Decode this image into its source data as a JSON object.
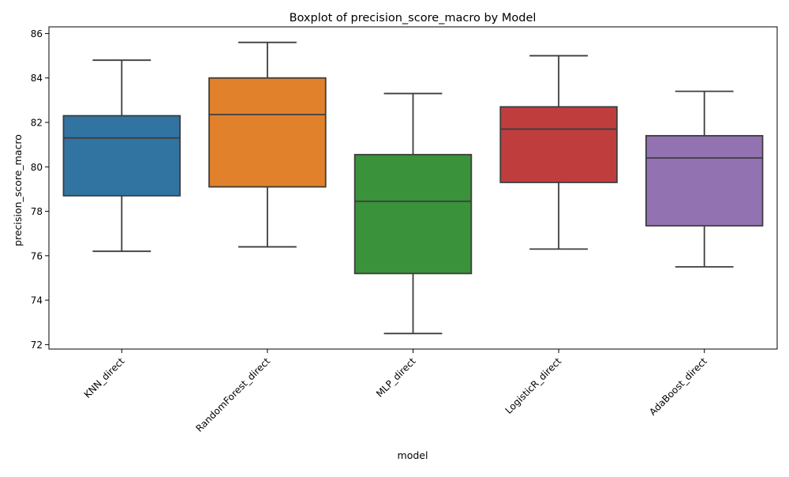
{
  "chart_data": {
    "type": "box",
    "title": "Boxplot of precision_score_macro by Model",
    "xlabel": "model",
    "ylabel": "precision_score_macro",
    "ylim": [
      71.8,
      86.3
    ],
    "yticks": [
      72,
      74,
      76,
      78,
      80,
      82,
      84,
      86
    ],
    "grid": false,
    "categories": [
      "KNN_direct",
      "RandomForest_direct",
      "MLP_direct",
      "LogisticR_direct",
      "AdaBoost_direct"
    ],
    "boxes": [
      {
        "name": "KNN_direct",
        "whisker_low": 76.2,
        "q1": 78.7,
        "median": 81.3,
        "q3": 82.3,
        "whisker_high": 84.8,
        "color": "#3274a1"
      },
      {
        "name": "RandomForest_direct",
        "whisker_low": 76.4,
        "q1": 79.1,
        "median": 82.35,
        "q3": 84.0,
        "whisker_high": 85.6,
        "color": "#e1812c"
      },
      {
        "name": "MLP_direct",
        "whisker_low": 72.5,
        "q1": 75.2,
        "median": 78.45,
        "q3": 80.55,
        "whisker_high": 83.3,
        "color": "#3a923a"
      },
      {
        "name": "LogisticR_direct",
        "whisker_low": 76.3,
        "q1": 79.3,
        "median": 81.7,
        "q3": 82.7,
        "whisker_high": 85.0,
        "color": "#c03d3e"
      },
      {
        "name": "AdaBoost_direct",
        "whisker_low": 75.5,
        "q1": 77.35,
        "median": 80.4,
        "q3": 81.4,
        "whisker_high": 83.4,
        "color": "#9372b2"
      }
    ]
  }
}
